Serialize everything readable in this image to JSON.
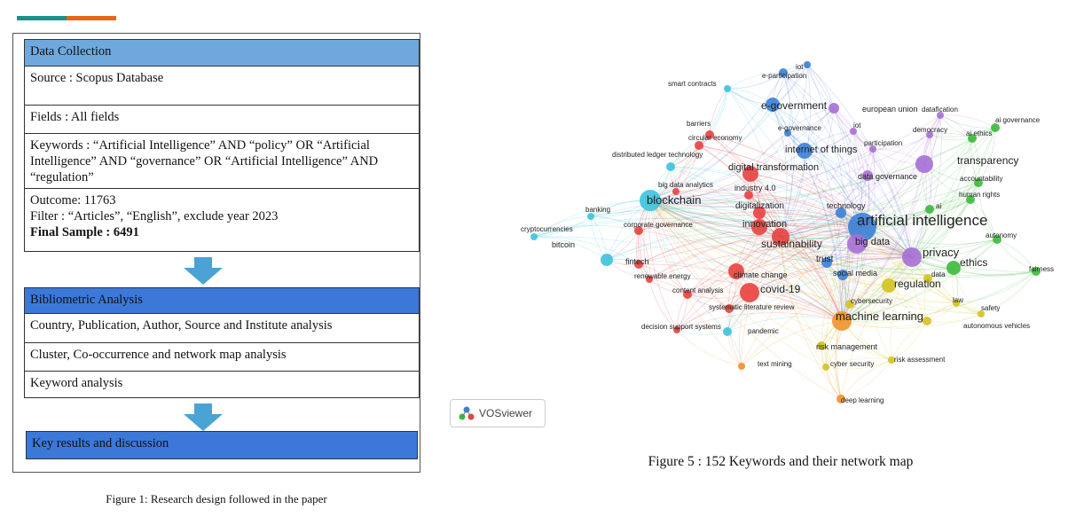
{
  "fig1": {
    "header": "Data Collection",
    "source": "Source : Scopus Database",
    "fields": "Fields : All fields",
    "keywords": "Keywords : “Artificial Intelligence” AND “policy” OR “Artificial Intelligence” AND “governance” OR “Artificial Intelligence” AND “regulation”",
    "outcome": "Outcome: 11763",
    "filter": "Filter : “Articles”, “English”, exclude year 2023",
    "final_sample": "Final Sample : 6491",
    "analysis_header": "Bibliometric Analysis",
    "analysis_items": [
      "Country, Publication, Author, Source and Institute analysis",
      "Cluster, Co-occurrence and network map analysis",
      "Keyword analysis"
    ],
    "results": "Key results and discussion",
    "caption": "Figure 1: Research design followed in the paper"
  },
  "fig5": {
    "logo_text": "VOSviewer",
    "caption": "Figure 5 : 152 Keywords and their network map",
    "colors": {
      "red": "#e8413f",
      "green": "#3cba3c",
      "blue": "#3b7fd6",
      "yellow": "#d4c31f",
      "purple": "#a66fd6",
      "cyan": "#3cc3dc",
      "orange": "#f0922c"
    },
    "keywords": [
      {
        "label": "e-participation",
        "color": "blue"
      },
      {
        "label": "iot",
        "color": "blue"
      },
      {
        "label": "smart contracts",
        "color": "cyan"
      },
      {
        "label": "e-government",
        "color": "blue"
      },
      {
        "label": "european union",
        "color": "purple"
      },
      {
        "label": "datafication",
        "color": "purple"
      },
      {
        "label": "ai governance",
        "color": "green"
      },
      {
        "label": "barriers",
        "color": "red"
      },
      {
        "label": "e-governance",
        "color": "blue"
      },
      {
        "label": "iot",
        "color": "purple"
      },
      {
        "label": "democracy",
        "color": "purple"
      },
      {
        "label": "ai ethics",
        "color": "green"
      },
      {
        "label": "circular economy",
        "color": "red"
      },
      {
        "label": "participation",
        "color": "purple"
      },
      {
        "label": "internet of things",
        "color": "blue"
      },
      {
        "label": "distributed ledger technology",
        "color": "cyan"
      },
      {
        "label": "transparency",
        "color": "purple"
      },
      {
        "label": "digital transformation",
        "color": "red"
      },
      {
        "label": "accountability",
        "color": "green"
      },
      {
        "label": "data governance",
        "color": "purple"
      },
      {
        "label": "big data analytics",
        "color": "red"
      },
      {
        "label": "industry 4.0",
        "color": "red"
      },
      {
        "label": "human rights",
        "color": "green"
      },
      {
        "label": "blockchain",
        "color": "cyan"
      },
      {
        "label": "digitalization",
        "color": "red"
      },
      {
        "label": "technology",
        "color": "blue"
      },
      {
        "label": "ai",
        "color": "green"
      },
      {
        "label": "banking",
        "color": "cyan"
      },
      {
        "label": "artificial intelligence",
        "color": "blue"
      },
      {
        "label": "innovation",
        "color": "red"
      },
      {
        "label": "corporate governance",
        "color": "red"
      },
      {
        "label": "cryptocurrencies",
        "color": "cyan"
      },
      {
        "label": "autonomy",
        "color": "green"
      },
      {
        "label": "bitcoin",
        "color": "cyan"
      },
      {
        "label": "big data",
        "color": "purple"
      },
      {
        "label": "sustainability",
        "color": "red"
      },
      {
        "label": "privacy",
        "color": "purple"
      },
      {
        "label": "trust",
        "color": "blue"
      },
      {
        "label": "ethics",
        "color": "green"
      },
      {
        "label": "fintech",
        "color": "red"
      },
      {
        "label": "fairness",
        "color": "green"
      },
      {
        "label": "renewable energy",
        "color": "red"
      },
      {
        "label": "climate change",
        "color": "red"
      },
      {
        "label": "social media",
        "color": "blue"
      },
      {
        "label": "data",
        "color": "yellow"
      },
      {
        "label": "regulation",
        "color": "yellow"
      },
      {
        "label": "content analysis",
        "color": "red"
      },
      {
        "label": "covid-19",
        "color": "red"
      },
      {
        "label": "cybersecurity",
        "color": "yellow"
      },
      {
        "label": "law",
        "color": "yellow"
      },
      {
        "label": "systematic literature review",
        "color": "red"
      },
      {
        "label": "safety",
        "color": "yellow"
      },
      {
        "label": "machine learning",
        "color": "orange"
      },
      {
        "label": "decision support systems",
        "color": "red"
      },
      {
        "label": "pandemic",
        "color": "cyan"
      },
      {
        "label": "autonomous vehicles",
        "color": "yellow"
      },
      {
        "label": "risk management",
        "color": "yellow"
      },
      {
        "label": "text mining",
        "color": "orange"
      },
      {
        "label": "cyber security",
        "color": "yellow"
      },
      {
        "label": "risk assessment",
        "color": "yellow"
      },
      {
        "label": "deep learning",
        "color": "orange"
      }
    ]
  }
}
